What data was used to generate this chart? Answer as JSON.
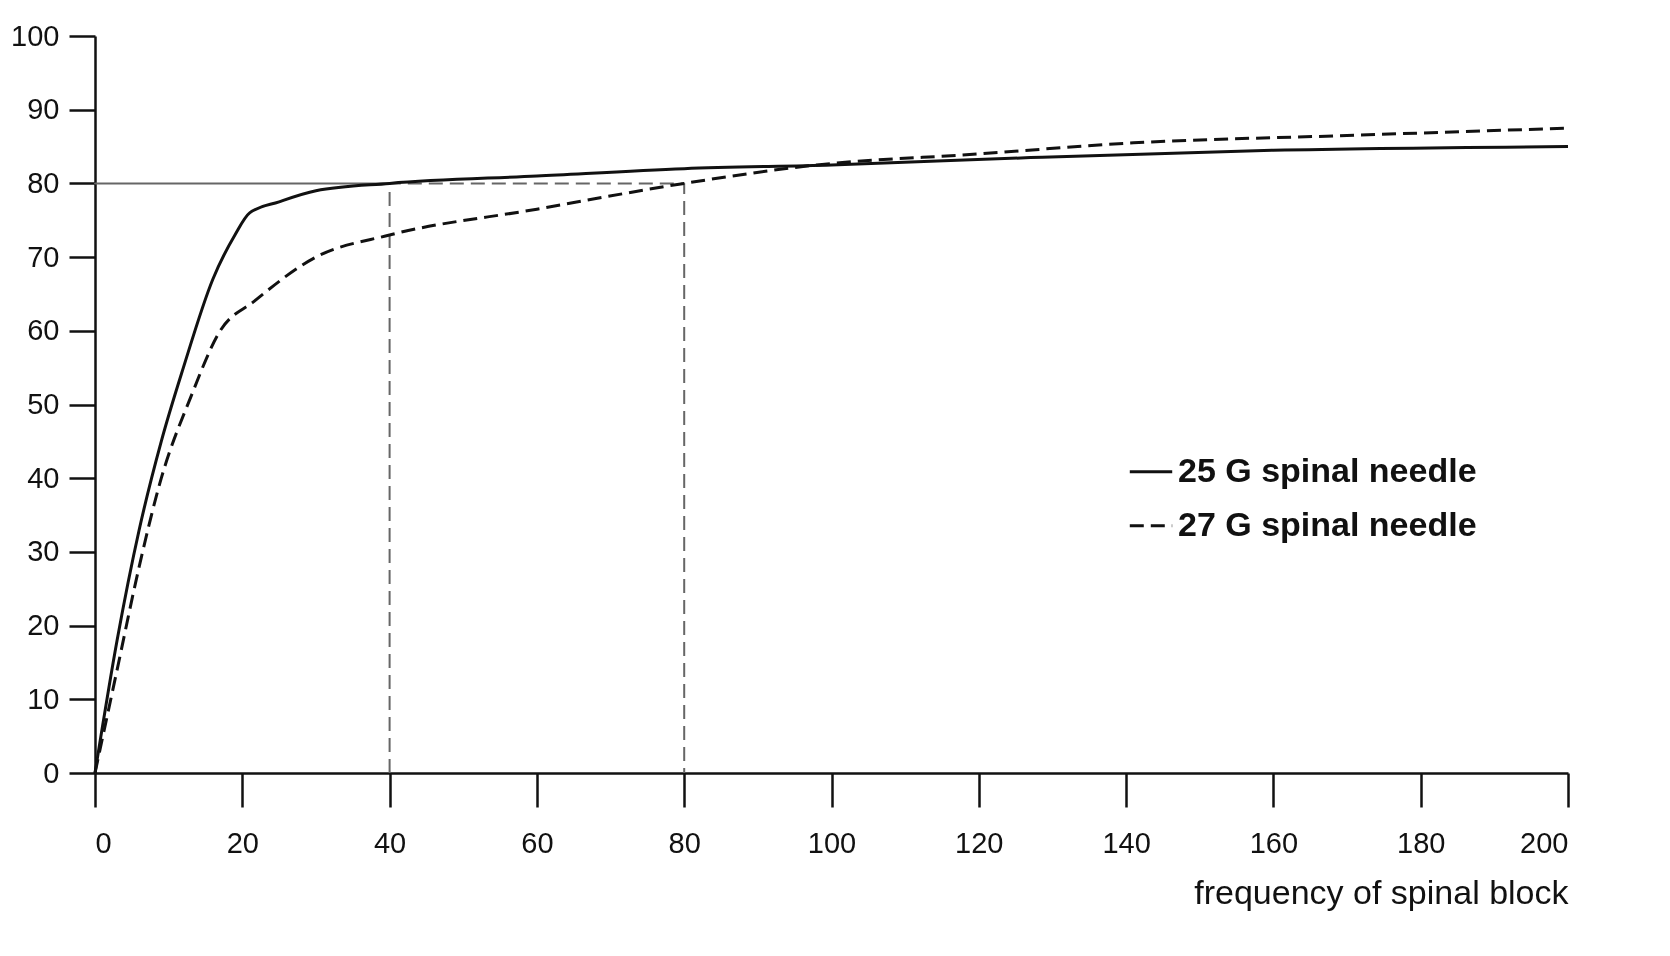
{
  "chart_data": {
    "type": "line",
    "xlabel": "frequency of spinal block",
    "xlim": [
      0,
      200
    ],
    "ylim": [
      0,
      100
    ],
    "xticks": [
      0,
      20,
      40,
      60,
      80,
      100,
      120,
      140,
      160,
      180,
      200
    ],
    "yticks": [
      0,
      10,
      20,
      30,
      40,
      50,
      60,
      70,
      80,
      90,
      100
    ],
    "grid": false,
    "legend": "right",
    "marker": "none",
    "series": [
      {
        "name": "25 G spinal needle",
        "color": "#111111",
        "line_style": "solid",
        "x": [
          0,
          3,
          6,
          9,
          12,
          16,
          19,
          21,
          25,
          30,
          40,
          60,
          80,
          100,
          127,
          160,
          200
        ],
        "values": [
          0,
          18,
          33,
          45,
          55,
          67,
          73,
          76,
          77.5,
          79,
          80,
          81,
          82,
          82.5,
          83.5,
          84.5,
          85
        ]
      },
      {
        "name": "27 G spinal needle",
        "color": "#111111",
        "line_style": "dashed",
        "x": [
          0,
          3,
          6,
          9,
          13,
          17,
          21.6,
          30,
          40,
          60,
          80,
          98,
          120,
          141,
          170,
          200
        ],
        "values": [
          0,
          14,
          28,
          40,
          51,
          60,
          64,
          70,
          73,
          76.5,
          80,
          82.5,
          84,
          85.5,
          86.5,
          87.5
        ]
      },
      {
        "color": "#666666",
        "line_style": "dashed",
        "x": [
          40,
          40,
          0,
          80,
          80
        ],
        "values": [
          0,
          80,
          80,
          80,
          0
        ]
      }
    ]
  }
}
